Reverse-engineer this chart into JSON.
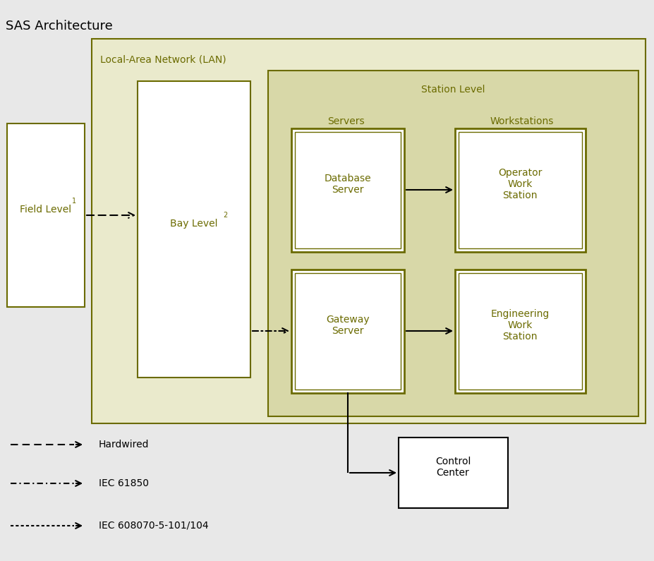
{
  "title": "SAS Architecture",
  "bg_color": "#e8e8e8",
  "lan_bg": "#eaeacc",
  "station_bg": "#d8d8a8",
  "servers_bg": "#c8c8a0",
  "box_edge": "#6b6b00",
  "text_color": "#6b6b00",
  "white_box": "#ffffff",
  "black": "#000000",
  "lan_label": "Local-Area Network (LAN)",
  "station_label": "Station Level",
  "servers_label": "Servers",
  "workstations_label": "Workstations",
  "field_label": "Field Level",
  "field_super": "1",
  "bay_label": "Bay Level",
  "bay_super": "2",
  "db_server_label": "Database\nServer",
  "gw_server_label": "Gateway\nServer",
  "op_ws_label": "Operator\nWork\nStation",
  "eng_ws_label": "Engineering\nWork\nStation",
  "control_label": "Control\nCenter",
  "legend_hardwired": "Hardwired",
  "legend_iec61850": "IEC 61850",
  "legend_iec608070": "IEC 608070-5-101/104",
  "font_size_title": 13,
  "font_size_label": 10,
  "font_size_box": 10,
  "font_size_legend": 10
}
